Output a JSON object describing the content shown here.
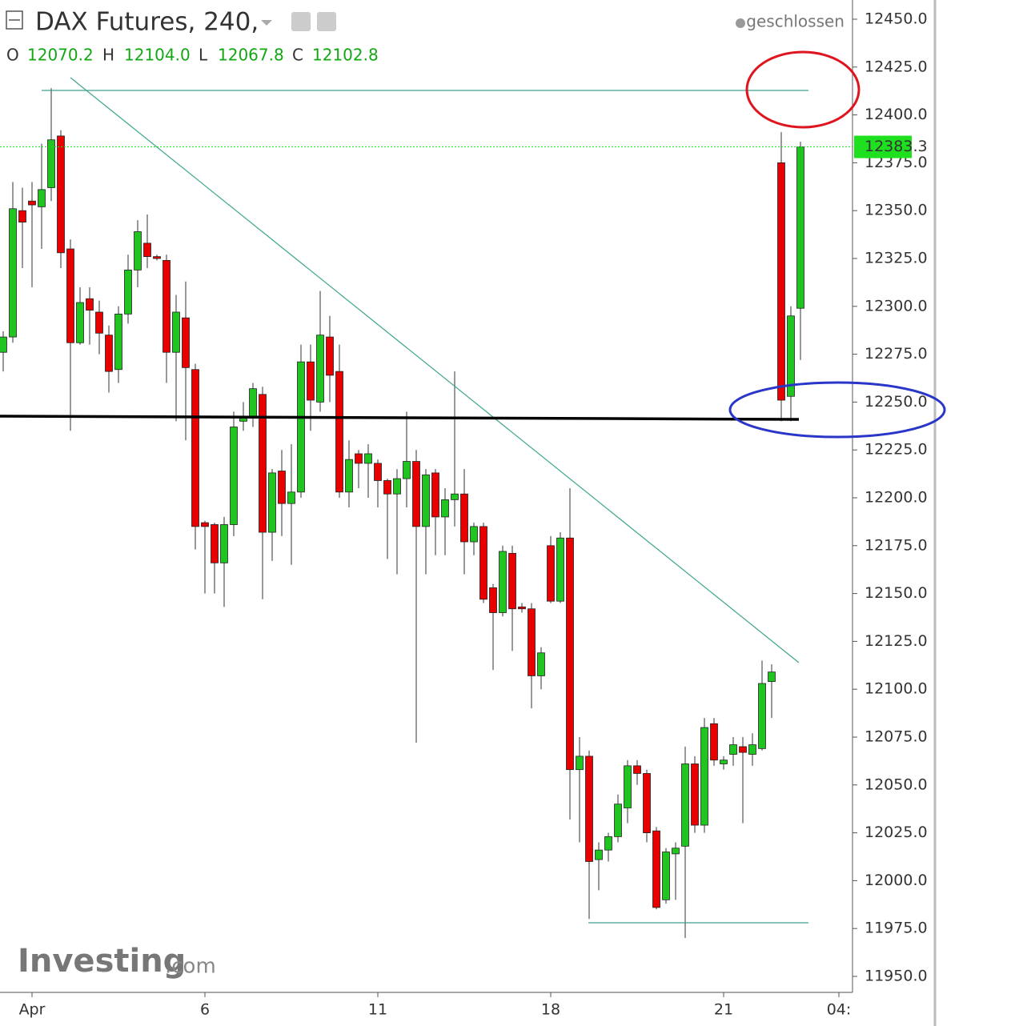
{
  "chart_data": {
    "type": "candlestick",
    "title": "DAX Futures, 240,",
    "status": "geschlossen",
    "ohlc_header": [
      {
        "label": "O",
        "value": "12070.2"
      },
      {
        "label": "H",
        "value": "12104.0"
      },
      {
        "label": "L",
        "value": "12067.8"
      },
      {
        "label": "C",
        "value": "12102.8"
      }
    ],
    "logo": "Investing",
    "logo_suffix": ".com",
    "up_color": "#22c422",
    "down_color": "#e60000",
    "last_price": {
      "value": 12383.3,
      "label": "12383.3"
    },
    "last_price_color": "#1ee01e",
    "categories": [
      null,
      null,
      null,
      "Apr",
      null,
      null,
      null,
      null,
      null,
      null,
      null,
      null,
      null,
      null,
      null,
      null,
      null,
      null,
      null,
      null,
      null,
      "6",
      null,
      null,
      null,
      null,
      null,
      null,
      null,
      null,
      null,
      null,
      null,
      null,
      null,
      null,
      null,
      null,
      null,
      "11",
      null,
      null,
      null,
      null,
      null,
      null,
      null,
      null,
      null,
      null,
      null,
      null,
      null,
      null,
      null,
      null,
      null,
      "18",
      null,
      null,
      null,
      null,
      null,
      null,
      null,
      null,
      null,
      null,
      null,
      null,
      null,
      null,
      null,
      null,
      null,
      "21",
      null,
      null,
      null,
      null,
      null,
      null,
      null,
      null,
      null,
      null,
      null,
      "04:"
    ],
    "open": [
      12276,
      12284,
      12350,
      12355,
      12352,
      12362,
      12389,
      12330,
      12281,
      12304,
      12297,
      12285,
      12267,
      12296,
      12319,
      12333,
      12326,
      12324,
      12276,
      12294,
      12267,
      12187,
      12186,
      12166,
      12186,
      12240,
      12242,
      12254,
      12182,
      12214,
      12197,
      12203,
      12271,
      12250,
      12284,
      12266,
      12203,
      12223,
      12218,
      12218,
      12209,
      12202,
      12210,
      12219,
      12185,
      12213,
      12190,
      12199,
      12202,
      12177,
      12185,
      12153,
      12140,
      12171,
      12143,
      12142,
      12107,
      12175,
      12146,
      12179,
      12058,
      12065,
      12011,
      12016,
      12023,
      12038,
      12060,
      12056,
      12026,
      11990,
      12014,
      12018,
      12061,
      12029,
      12082,
      12061,
      12066,
      12070,
      12066,
      12069,
      12104,
      12375,
      12253,
      12299,
      null,
      null,
      null,
      null
    ],
    "high": [
      12287,
      12365,
      12362,
      12365,
      12385,
      12414,
      12392,
      12335,
      12310,
      12310,
      12303,
      12290,
      12300,
      12327,
      12345,
      12348,
      12327,
      12327,
      12306,
      12313,
      12270,
      12188,
      12187,
      12190,
      12245,
      12250,
      12260,
      12258,
      12215,
      12225,
      12228,
      12280,
      12280,
      12308,
      12295,
      12280,
      12230,
      12225,
      12228,
      12220,
      12210,
      12215,
      12245,
      12225,
      12215,
      12215,
      12205,
      12266,
      12215,
      12187,
      12187,
      12155,
      12175,
      12175,
      12145,
      12145,
      12122,
      12180,
      12182,
      12205,
      12075,
      12068,
      12020,
      12025,
      12045,
      12063,
      12063,
      12058,
      12028,
      12017,
      12020,
      12070,
      12065,
      12085,
      12085,
      12065,
      12075,
      12075,
      12077,
      12115,
      12113,
      12391,
      12300,
      12386,
      null,
      null,
      null,
      null
    ],
    "low": [
      12266,
      12281,
      12320,
      12310,
      12330,
      12355,
      12320,
      12235,
      12280,
      12280,
      12275,
      12255,
      12260,
      12291,
      12310,
      12320,
      12324,
      12260,
      12240,
      12230,
      12173,
      12150,
      12150,
      12143,
      12180,
      12235,
      12237,
      12147,
      12167,
      12180,
      12165,
      12200,
      12235,
      12245,
      12250,
      12200,
      12195,
      12205,
      12200,
      12195,
      12168,
      12160,
      12195,
      12072,
      12160,
      12170,
      12170,
      12185,
      12160,
      12170,
      12145,
      12110,
      12138,
      12120,
      12140,
      12090,
      12100,
      12145,
      12145,
      12032,
      12020,
      11980,
      11995,
      12010,
      12020,
      12030,
      12050,
      12020,
      11985,
      11988,
      11990,
      11970,
      12025,
      12025,
      12060,
      12058,
      12060,
      12030,
      12060,
      12068,
      12085,
      12240,
      12240,
      12272,
      null,
      null,
      null,
      null
    ],
    "close": [
      12284,
      12351,
      12344,
      12353,
      12361,
      12387,
      12328,
      12281,
      12302,
      12298,
      12286,
      12266,
      12296,
      12319,
      12339,
      12326,
      12325,
      12276,
      12297,
      12268,
      12185,
      12185,
      12166,
      12186,
      12237,
      12242,
      12257,
      12182,
      12213,
      12197,
      12203,
      12271,
      12251,
      12285,
      12264,
      12203,
      12220,
      12218,
      12223,
      12209,
      12202,
      12210,
      12219,
      12185,
      12212,
      12190,
      12199,
      12202,
      12177,
      12185,
      12147,
      12140,
      12172,
      12142,
      12142,
      12107,
      12119,
      12146,
      12179,
      12058,
      12065,
      12010,
      12016,
      12023,
      12040,
      12060,
      12056,
      12025,
      11986,
      12015,
      12017,
      12061,
      12029,
      12080,
      12063,
      12063,
      12071,
      12067,
      12071,
      12103,
      12109,
      12251,
      12295,
      12383.3,
      null,
      null,
      null,
      null
    ],
    "ylim": [
      11950,
      12450
    ],
    "yticks": [
      {
        "value": 11950,
        "label": "11950.0"
      },
      {
        "value": 11975,
        "label": "11975.0"
      },
      {
        "value": 12000,
        "label": "12000.0"
      },
      {
        "value": 12025,
        "label": "12025.0"
      },
      {
        "value": 12050,
        "label": "12050.0"
      },
      {
        "value": 12075,
        "label": "12075.0"
      },
      {
        "value": 12100,
        "label": "12100.0"
      },
      {
        "value": 12125,
        "label": "12125.0"
      },
      {
        "value": 12150,
        "label": "12150.0"
      },
      {
        "value": 12175,
        "label": "12175.0"
      },
      {
        "value": 12200,
        "label": "12200.0"
      },
      {
        "value": 12225,
        "label": "12225.0"
      },
      {
        "value": 12250,
        "label": "12250.0"
      },
      {
        "value": 12275,
        "label": "12275.0"
      },
      {
        "value": 12300,
        "label": "12300.0"
      },
      {
        "value": 12325,
        "label": "12325.0"
      },
      {
        "value": 12350,
        "label": "12350.0"
      },
      {
        "value": 12375,
        "label": "12375.0"
      },
      {
        "value": 12400,
        "label": "12400.0"
      },
      {
        "value": 12425,
        "label": "12425.0"
      },
      {
        "value": 12450,
        "label": "12450.0"
      }
    ]
  }
}
